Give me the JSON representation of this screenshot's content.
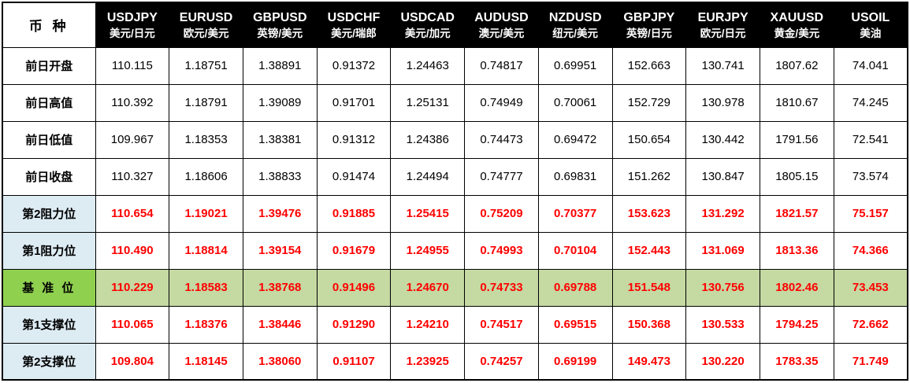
{
  "colors": {
    "header_bg": "#000000",
    "header_text": "#ffffff",
    "level_label_bg": "#ddebf3",
    "pivot_label_bg": "#8fd14f",
    "pivot_row_bg": "#c5d9a2",
    "value_red": "#fe0000",
    "border": "#000000"
  },
  "table": {
    "corner_label": "币 种",
    "columns": [
      {
        "symbol": "USDJPY",
        "name": "美元/日元"
      },
      {
        "symbol": "EURUSD",
        "name": "欧元/美元"
      },
      {
        "symbol": "GBPUSD",
        "name": "英镑/美元"
      },
      {
        "symbol": "USDCHF",
        "name": "美元/瑞郎"
      },
      {
        "symbol": "USDCAD",
        "name": "美元/加元"
      },
      {
        "symbol": "AUDUSD",
        "name": "澳元/美元"
      },
      {
        "symbol": "NZDUSD",
        "name": "纽元/美元"
      },
      {
        "symbol": "GBPJPY",
        "name": "英镑/日元"
      },
      {
        "symbol": "EURJPY",
        "name": "欧元/日元"
      },
      {
        "symbol": "XAUUSD",
        "name": "黄金/美元"
      },
      {
        "symbol": "USOIL",
        "name": "美油"
      }
    ],
    "rows": [
      {
        "label": "前日开盘",
        "type": "plain",
        "values": [
          "110.115",
          "1.18751",
          "1.38891",
          "0.91372",
          "1.24463",
          "0.74817",
          "0.69951",
          "152.663",
          "130.741",
          "1807.62",
          "74.041"
        ]
      },
      {
        "label": "前日高值",
        "type": "plain",
        "values": [
          "110.392",
          "1.18791",
          "1.39089",
          "0.91701",
          "1.25131",
          "0.74949",
          "0.70061",
          "152.729",
          "130.978",
          "1810.67",
          "74.245"
        ]
      },
      {
        "label": "前日低值",
        "type": "plain",
        "values": [
          "109.967",
          "1.18353",
          "1.38381",
          "0.91312",
          "1.24386",
          "0.74473",
          "0.69472",
          "150.654",
          "130.442",
          "1791.56",
          "72.541"
        ]
      },
      {
        "label": "前日收盘",
        "type": "plain",
        "values": [
          "110.327",
          "1.18606",
          "1.38833",
          "0.91474",
          "1.24494",
          "0.74777",
          "0.69831",
          "151.262",
          "130.847",
          "1805.15",
          "73.574"
        ]
      },
      {
        "label": "第2阻力位",
        "type": "level",
        "values": [
          "110.654",
          "1.19021",
          "1.39476",
          "0.91885",
          "1.25415",
          "0.75209",
          "0.70377",
          "153.623",
          "131.292",
          "1821.57",
          "75.157"
        ]
      },
      {
        "label": "第1阻力位",
        "type": "level",
        "values": [
          "110.490",
          "1.18814",
          "1.39154",
          "0.91679",
          "1.24955",
          "0.74993",
          "0.70104",
          "152.443",
          "131.069",
          "1813.36",
          "74.366"
        ]
      },
      {
        "label": "基 准 位",
        "type": "pivot",
        "values": [
          "110.229",
          "1.18583",
          "1.38768",
          "0.91496",
          "1.24670",
          "0.74733",
          "0.69788",
          "151.548",
          "130.756",
          "1802.46",
          "73.453"
        ]
      },
      {
        "label": "第1支撑位",
        "type": "level",
        "values": [
          "110.065",
          "1.18376",
          "1.38446",
          "0.91290",
          "1.24210",
          "0.74517",
          "0.69515",
          "150.368",
          "130.533",
          "1794.25",
          "72.662"
        ]
      },
      {
        "label": "第2支撑位",
        "type": "level",
        "values": [
          "109.804",
          "1.18145",
          "1.38060",
          "0.91107",
          "1.23925",
          "0.74257",
          "0.69199",
          "149.473",
          "130.220",
          "1783.35",
          "71.749"
        ]
      }
    ]
  }
}
